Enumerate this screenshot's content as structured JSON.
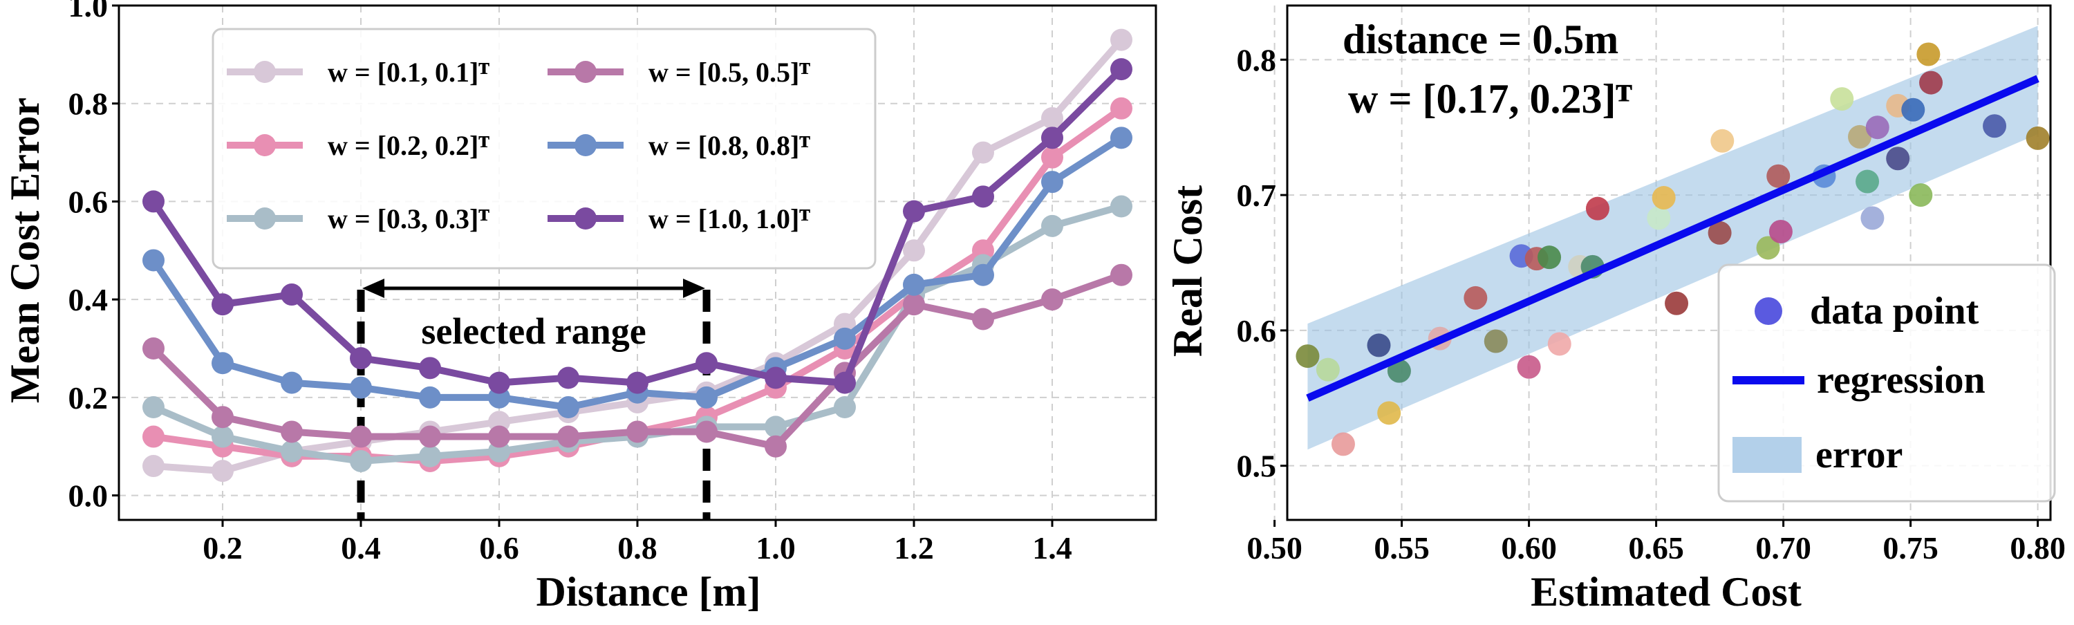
{
  "chart_data": [
    {
      "type": "line",
      "xlabel": "Distance [m]",
      "ylabel": "Mean Cost Error",
      "xlim": [
        0.05,
        1.55
      ],
      "ylim": [
        -0.05,
        1.0
      ],
      "xticks": [
        "0.2",
        "0.4",
        "0.6",
        "0.8",
        "1.0",
        "1.2",
        "1.4"
      ],
      "xtick_values": [
        0.2,
        0.4,
        0.6,
        0.8,
        1.0,
        1.2,
        1.4
      ],
      "yticks": [
        "0.0",
        "0.2",
        "0.4",
        "0.6",
        "0.8",
        "1.0"
      ],
      "ytick_values": [
        0.0,
        0.2,
        0.4,
        0.6,
        0.8,
        1.0
      ],
      "grid": true,
      "legend_position": "top-left",
      "x": [
        0.1,
        0.2,
        0.3,
        0.4,
        0.5,
        0.6,
        0.7,
        0.8,
        0.9,
        1.0,
        1.1,
        1.2,
        1.3,
        1.4,
        1.5
      ],
      "series": [
        {
          "name": "w = [0.1, 0.1]ᵀ",
          "color": "#d8c8d8",
          "values": [
            0.06,
            0.05,
            0.09,
            0.11,
            0.13,
            0.15,
            0.17,
            0.19,
            0.21,
            0.27,
            0.35,
            0.5,
            0.7,
            0.77,
            0.93
          ]
        },
        {
          "name": "w = [0.2, 0.2]ᵀ",
          "color": "#e88fb3",
          "values": [
            0.12,
            0.1,
            0.08,
            0.08,
            0.07,
            0.08,
            0.1,
            0.13,
            0.16,
            0.22,
            0.3,
            0.41,
            0.5,
            0.69,
            0.79
          ]
        },
        {
          "name": "w = [0.3, 0.3]ᵀ",
          "color": "#a9bdc8",
          "values": [
            0.18,
            0.12,
            0.09,
            0.07,
            0.08,
            0.09,
            0.11,
            0.12,
            0.14,
            0.14,
            0.18,
            0.41,
            0.47,
            0.55,
            0.59
          ]
        },
        {
          "name": "w = [0.5, 0.5]ᵀ",
          "color": "#b878a8",
          "values": [
            0.3,
            0.16,
            0.13,
            0.12,
            0.12,
            0.12,
            0.12,
            0.13,
            0.13,
            0.1,
            0.25,
            0.39,
            0.36,
            0.4,
            0.45
          ]
        },
        {
          "name": "w = [0.8, 0.8]ᵀ",
          "color": "#6d8fc8",
          "values": [
            0.48,
            0.27,
            0.23,
            0.22,
            0.2,
            0.2,
            0.18,
            0.21,
            0.2,
            0.26,
            0.32,
            0.43,
            0.45,
            0.64,
            0.73
          ]
        },
        {
          "name": "w = [1.0, 1.0]ᵀ",
          "color": "#7a4aa0",
          "values": [
            0.6,
            0.39,
            0.41,
            0.28,
            0.26,
            0.23,
            0.24,
            0.23,
            0.27,
            0.24,
            0.23,
            0.58,
            0.61,
            0.73,
            0.87
          ]
        }
      ],
      "annotations": {
        "range_label": "selected range",
        "range_start": 0.4,
        "range_end": 0.9
      }
    },
    {
      "type": "scatter",
      "xlabel": "Estimated Cost",
      "ylabel": "Real Cost",
      "xlim": [
        0.505,
        0.805
      ],
      "ylim": [
        0.46,
        0.84
      ],
      "xticks": [
        "0.50",
        "0.55",
        "0.60",
        "0.65",
        "0.70",
        "0.75",
        "0.80"
      ],
      "xtick_values": [
        0.5,
        0.55,
        0.6,
        0.65,
        0.7,
        0.75,
        0.8
      ],
      "yticks": [
        "0.5",
        "0.6",
        "0.7",
        "0.8"
      ],
      "ytick_values": [
        0.5,
        0.6,
        0.7,
        0.8
      ],
      "grid": true,
      "legend_position": "bottom-right",
      "annotations": {
        "line1": "distance = 0.5m",
        "line2": "w = [0.17, 0.23]ᵀ"
      },
      "legend": {
        "data_point": "data point",
        "regression": "regression",
        "error": "error"
      },
      "regression": {
        "x": [
          0.513,
          0.8
        ],
        "y": [
          0.55,
          0.786
        ],
        "color": "#0a0aee"
      },
      "error_band": {
        "x": [
          0.513,
          0.8
        ],
        "upper": [
          0.605,
          0.825
        ],
        "lower": [
          0.512,
          0.745
        ],
        "color": "#9dc3e3"
      },
      "points": [
        {
          "x": 0.513,
          "y": 0.581,
          "color": "#7a8a3a"
        },
        {
          "x": 0.521,
          "y": 0.571,
          "color": "#b8d89a"
        },
        {
          "x": 0.527,
          "y": 0.516,
          "color": "#e89a9a"
        },
        {
          "x": 0.541,
          "y": 0.589,
          "color": "#3a4a8a"
        },
        {
          "x": 0.545,
          "y": 0.539,
          "color": "#e0b84a"
        },
        {
          "x": 0.549,
          "y": 0.57,
          "color": "#4a8a6a"
        },
        {
          "x": 0.565,
          "y": 0.594,
          "color": "#e0a8a8"
        },
        {
          "x": 0.579,
          "y": 0.624,
          "color": "#b85a5a"
        },
        {
          "x": 0.587,
          "y": 0.592,
          "color": "#8a8a5a"
        },
        {
          "x": 0.597,
          "y": 0.655,
          "color": "#5a6ad8"
        },
        {
          "x": 0.6,
          "y": 0.573,
          "color": "#c85a8a"
        },
        {
          "x": 0.603,
          "y": 0.653,
          "color": "#b85a5a"
        },
        {
          "x": 0.608,
          "y": 0.654,
          "color": "#4a8a4a"
        },
        {
          "x": 0.612,
          "y": 0.59,
          "color": "#f0a8a8"
        },
        {
          "x": 0.62,
          "y": 0.647,
          "color": "#d0d0c0"
        },
        {
          "x": 0.625,
          "y": 0.647,
          "color": "#4a8a6a"
        },
        {
          "x": 0.627,
          "y": 0.69,
          "color": "#c03a4a"
        },
        {
          "x": 0.651,
          "y": 0.683,
          "color": "#c8e8c8"
        },
        {
          "x": 0.653,
          "y": 0.698,
          "color": "#e8b850"
        },
        {
          "x": 0.658,
          "y": 0.62,
          "color": "#9a3a3a"
        },
        {
          "x": 0.675,
          "y": 0.672,
          "color": "#9a4a4a"
        },
        {
          "x": 0.676,
          "y": 0.74,
          "color": "#f0c88a"
        },
        {
          "x": 0.694,
          "y": 0.661,
          "color": "#9ab85a"
        },
        {
          "x": 0.698,
          "y": 0.714,
          "color": "#b05a5a"
        },
        {
          "x": 0.699,
          "y": 0.673,
          "color": "#b84a8a"
        },
        {
          "x": 0.716,
          "y": 0.714,
          "color": "#5a8ad8"
        },
        {
          "x": 0.723,
          "y": 0.771,
          "color": "#c8e09a"
        },
        {
          "x": 0.73,
          "y": 0.743,
          "color": "#b8a878"
        },
        {
          "x": 0.733,
          "y": 0.71,
          "color": "#5aa88a"
        },
        {
          "x": 0.735,
          "y": 0.683,
          "color": "#9aa8d8"
        },
        {
          "x": 0.737,
          "y": 0.75,
          "color": "#9a6ab8"
        },
        {
          "x": 0.745,
          "y": 0.766,
          "color": "#e8b88a"
        },
        {
          "x": 0.745,
          "y": 0.727,
          "color": "#4a4a8a"
        },
        {
          "x": 0.751,
          "y": 0.763,
          "color": "#3a6ab8"
        },
        {
          "x": 0.754,
          "y": 0.7,
          "color": "#8ab85a"
        },
        {
          "x": 0.757,
          "y": 0.804,
          "color": "#c89a2a"
        },
        {
          "x": 0.758,
          "y": 0.783,
          "color": "#a03a4a"
        },
        {
          "x": 0.783,
          "y": 0.751,
          "color": "#4a5aa8"
        },
        {
          "x": 0.8,
          "y": 0.742,
          "color": "#a0802a"
        }
      ]
    }
  ]
}
